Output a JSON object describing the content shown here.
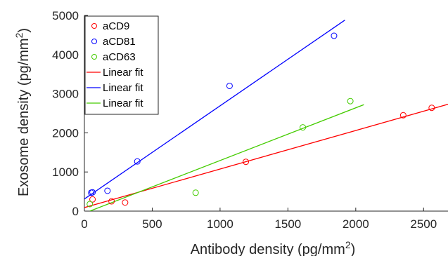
{
  "chart_data": {
    "type": "scatter",
    "xlabel": "Antibody density (pg/mm",
    "xlabel_sup": "2",
    "xlabel_end": ")",
    "ylabel": "Exosome density (pg/mm",
    "ylabel_sup": "2",
    "ylabel_end": ")",
    "xlim": [
      0,
      2680
    ],
    "ylim": [
      0,
      5000
    ],
    "xticks": [
      0,
      500,
      1000,
      1500,
      2000,
      2500
    ],
    "yticks": [
      0,
      1000,
      2000,
      3000,
      4000,
      5000
    ],
    "legend_position": "top-left",
    "series": [
      {
        "name": "aCD9",
        "color": "#ff0000",
        "marker": "circle",
        "points": [
          [
            60,
            300
          ],
          [
            200,
            250
          ],
          [
            300,
            220
          ],
          [
            1190,
            1260
          ],
          [
            2350,
            2450
          ],
          [
            2560,
            2640
          ]
        ]
      },
      {
        "name": "aCD81",
        "color": "#0000ff",
        "marker": "circle",
        "points": [
          [
            50,
            470
          ],
          [
            60,
            480
          ],
          [
            170,
            520
          ],
          [
            390,
            1270
          ],
          [
            1070,
            3200
          ],
          [
            1840,
            4480
          ]
        ]
      },
      {
        "name": "aCD63",
        "color": "#44cc00",
        "marker": "circle",
        "points": [
          [
            40,
            180
          ],
          [
            820,
            470
          ],
          [
            1610,
            2140
          ],
          [
            1960,
            2810
          ]
        ]
      }
    ],
    "fits": [
      {
        "name": "Linear fit",
        "color": "#ff0000",
        "x": [
          0,
          2680
        ],
        "y": [
          90,
          2730
        ]
      },
      {
        "name": "Linear fit",
        "color": "#0000ff",
        "x": [
          0,
          1920
        ],
        "y": [
          310,
          4880
        ]
      },
      {
        "name": "Linear fit",
        "color": "#44cc00",
        "x": [
          40,
          2060
        ],
        "y": [
          0,
          2720
        ]
      }
    ]
  }
}
